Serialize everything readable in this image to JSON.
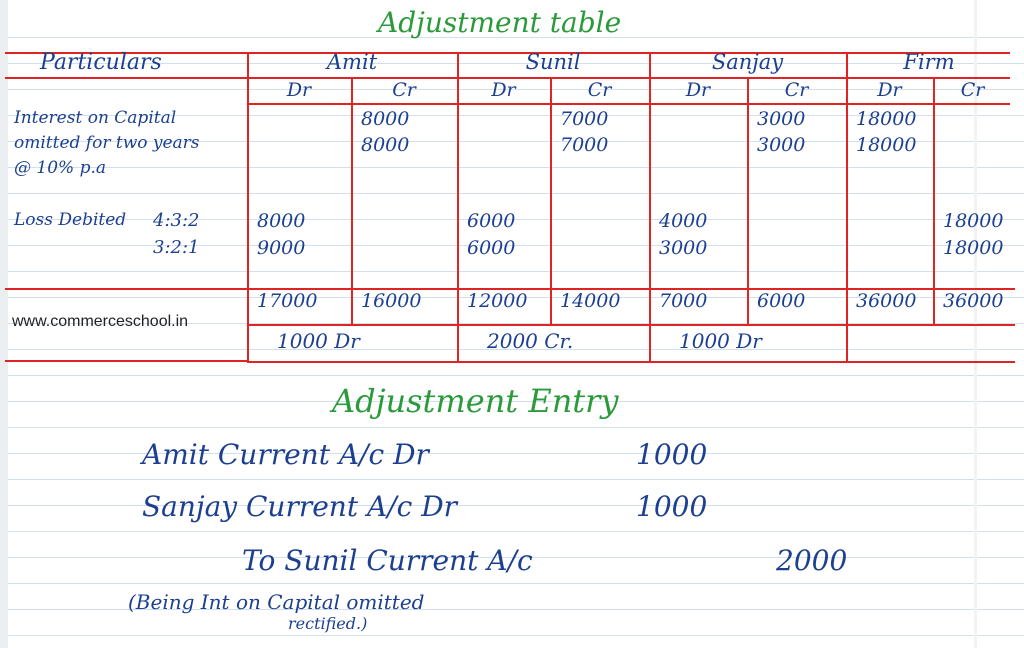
{
  "title": "Adjustment table",
  "table": {
    "particulars_header": "Particulars",
    "partners": [
      "Amit",
      "Sunil",
      "Sanjay",
      "Firm"
    ],
    "subheaders": [
      "Dr",
      "Cr",
      "Dr",
      "Cr",
      "Dr",
      "Cr",
      "Dr",
      "Cr"
    ],
    "interest_label": [
      "Interest on Capital",
      "omitted for two years",
      "@ 10% p.a"
    ],
    "interest_rows": [
      [
        "",
        "8000",
        "",
        "7000",
        "",
        "3000",
        "18000",
        ""
      ],
      [
        "",
        "8000",
        "",
        "7000",
        "",
        "3000",
        "18000",
        ""
      ]
    ],
    "loss_label": "Loss Debited",
    "loss_ratios": [
      "4:3:2",
      "3:2:1"
    ],
    "loss_rows": [
      [
        "8000",
        "",
        "6000",
        "",
        "4000",
        "",
        "",
        "18000"
      ],
      [
        "9000",
        "",
        "6000",
        "",
        "3000",
        "",
        "",
        "18000"
      ]
    ],
    "totals": [
      "17000",
      "16000",
      "12000",
      "14000",
      "7000",
      "6000",
      "36000",
      "36000"
    ],
    "net": [
      "1000 Dr",
      "2000 Cr.",
      "1000 Dr",
      ""
    ]
  },
  "watermark": "www.commerceschool.in",
  "entry": {
    "title": "Adjustment Entry",
    "lines": [
      {
        "text": "Amit Current A/c Dr",
        "debit": "1000",
        "credit": ""
      },
      {
        "text": "Sanjay Current A/c Dr",
        "debit": "1000",
        "credit": ""
      },
      {
        "text": "To Sunil Current A/c",
        "debit": "",
        "credit": "2000"
      }
    ],
    "narration": [
      "(Being Int on Capital omitted",
      "rectified.)"
    ]
  },
  "colors": {
    "ink": "#1c3f8f",
    "heading": "#2b9a3a",
    "rule": "#e02424",
    "paper_line": "#cfe0ee"
  }
}
